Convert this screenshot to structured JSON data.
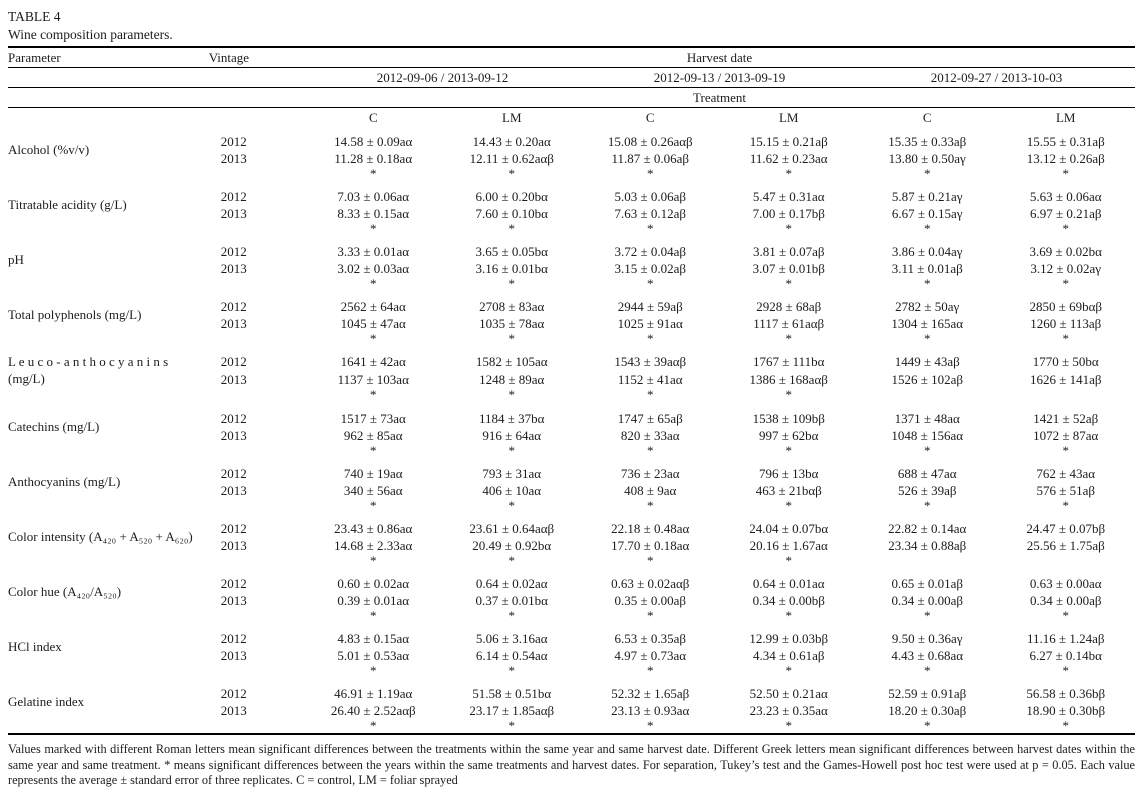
{
  "title": "TABLE 4",
  "subtitle": "Wine composition parameters.",
  "header": {
    "parameter": "Parameter",
    "vintage": "Vintage",
    "harvest_date": "Harvest date",
    "harvest_groups": [
      "2012-09-06 / 2013-09-12",
      "2012-09-13 / 2013-09-19",
      "2012-09-27 / 2013-10-03"
    ],
    "treatment": "Treatment",
    "treatment_cols": [
      "C",
      "LM",
      "C",
      "LM",
      "C",
      "LM"
    ]
  },
  "parameters": [
    {
      "label": "Alcohol (%v/v)",
      "vintages": [
        {
          "year": "2012",
          "values": [
            "14.58 ± 0.09aα",
            "14.43 ± 0.20aα",
            "15.08 ± 0.26aαβ",
            "15.15 ± 0.21aβ",
            "15.35 ± 0.33aβ",
            "15.55 ± 0.31aβ"
          ]
        },
        {
          "year": "2013",
          "values": [
            "11.28 ± 0.18aα",
            "12.11 ± 0.62aαβ",
            "11.87 ± 0.06aβ",
            "11.62 ± 0.23aα",
            "13.80 ± 0.50aγ",
            "13.12 ± 0.26aβ"
          ]
        }
      ],
      "sig": [
        "*",
        "*",
        "*",
        "*",
        "*",
        "*"
      ]
    },
    {
      "label": "Titratable acidity (g/L)",
      "vintages": [
        {
          "year": "2012",
          "values": [
            "7.03 ± 0.06aα",
            "6.00 ± 0.20bα",
            "5.03 ± 0.06aβ",
            "5.47 ± 0.31aα",
            "5.87 ± 0.21aγ",
            "5.63 ± 0.06aα"
          ]
        },
        {
          "year": "2013",
          "values": [
            "8.33 ± 0.15aα",
            "7.60 ± 0.10bα",
            "7.63 ± 0.12aβ",
            "7.00 ± 0.17bβ",
            "6.67 ± 0.15aγ",
            "6.97 ± 0.21aβ"
          ]
        }
      ],
      "sig": [
        "*",
        "*",
        "*",
        "*",
        "*",
        "*"
      ]
    },
    {
      "label": "pH",
      "vintages": [
        {
          "year": "2012",
          "values": [
            "3.33 ± 0.01aα",
            "3.65 ± 0.05bα",
            "3.72 ± 0.04aβ",
            "3.81 ± 0.07aβ",
            "3.86 ± 0.04aγ",
            "3.69 ± 0.02bα"
          ]
        },
        {
          "year": "2013",
          "values": [
            "3.02 ± 0.03aα",
            "3.16 ± 0.01bα",
            "3.15 ± 0.02aβ",
            "3.07 ± 0.01bβ",
            "3.11 ± 0.01aβ",
            "3.12 ± 0.02aγ"
          ]
        }
      ],
      "sig": [
        "*",
        "*",
        "*",
        "*",
        "*",
        "*"
      ]
    },
    {
      "label": "Total polyphenols (mg/L)",
      "vintages": [
        {
          "year": "2012",
          "values": [
            "2562 ± 64aα",
            "2708 ± 83aα",
            "2944 ± 59aβ",
            "2928 ± 68aβ",
            "2782 ± 50aγ",
            "2850 ± 69bαβ"
          ]
        },
        {
          "year": "2013",
          "values": [
            "1045 ± 47aα",
            "1035 ± 78aα",
            "1025 ± 91aα",
            "1117 ± 61aαβ",
            "1304 ± 165aα",
            "1260 ± 113aβ"
          ]
        }
      ],
      "sig": [
        "*",
        "*",
        "*",
        "*",
        "*",
        "*"
      ]
    },
    {
      "label": "L e u c o - a n t h o c y a n i n s\n(mg/L)",
      "vintages": [
        {
          "year": "2012",
          "values": [
            "1641 ± 42aα",
            "1582 ± 105aα",
            "1543 ± 39aαβ",
            "1767 ± 111bα",
            "1449 ± 43aβ",
            "1770 ± 50bα"
          ]
        },
        {
          "year": "2013",
          "values": [
            "1137 ± 103aα",
            "1248 ± 89aα",
            "1152 ± 41aα",
            "1386 ± 168aαβ",
            "1526 ± 102aβ",
            "1626 ± 141aβ"
          ]
        }
      ],
      "sig": [
        "*",
        "*",
        "*",
        "*",
        "",
        ""
      ]
    },
    {
      "label": "Catechins (mg/L)",
      "vintages": [
        {
          "year": "2012",
          "values": [
            "1517 ± 73aα",
            "1184 ± 37bα",
            "1747 ± 65aβ",
            "1538 ± 109bβ",
            "1371 ± 48aα",
            "1421 ± 52aβ"
          ]
        },
        {
          "year": "2013",
          "values": [
            "962 ± 85aα",
            "916 ± 64aα",
            "820 ± 33aα",
            "997 ± 62bα",
            "1048 ± 156aα",
            "1072 ± 87aα"
          ]
        }
      ],
      "sig": [
        "*",
        "*",
        "*",
        "*",
        "*",
        "*"
      ]
    },
    {
      "label": "Anthocyanins (mg/L)",
      "vintages": [
        {
          "year": "2012",
          "values": [
            "740 ± 19aα",
            "793 ± 31aα",
            "736 ± 23aα",
            "796 ± 13bα",
            "688 ± 47aα",
            "762 ± 43aα"
          ]
        },
        {
          "year": "2013",
          "values": [
            "340 ± 56aα",
            "406 ± 10aα",
            "408 ± 9aα",
            "463 ± 21bαβ",
            "526 ± 39aβ",
            "576 ± 51aβ"
          ]
        }
      ],
      "sig": [
        "*",
        "*",
        "*",
        "*",
        "*",
        "*"
      ]
    },
    {
      "label": "Color intensity (A₄₂₀ + A₅₂₀ + A₆₂₀)",
      "vintages": [
        {
          "year": "2012",
          "values": [
            "23.43 ± 0.86aα",
            "23.61 ± 0.64aαβ",
            "22.18 ± 0.48aα",
            "24.04 ± 0.07bα",
            "22.82 ± 0.14aα",
            "24.47 ± 0.07bβ"
          ]
        },
        {
          "year": "2013",
          "values": [
            "14.68 ± 2.33aα",
            "20.49 ± 0.92bα",
            "17.70 ± 0.18aα",
            "20.16 ± 1.67aα",
            "23.34 ± 0.88aβ",
            "25.56 ± 1.75aβ"
          ]
        }
      ],
      "sig": [
        "*",
        "*",
        "*",
        "*",
        "",
        ""
      ]
    },
    {
      "label": "Color hue (A₄₂₀/A₅₂₀)",
      "vintages": [
        {
          "year": "2012",
          "values": [
            "0.60 ± 0.02aα",
            "0.64 ± 0.02aα",
            "0.63 ± 0.02aαβ",
            "0.64 ± 0.01aα",
            "0.65 ± 0.01aβ",
            "0.63 ± 0.00aα"
          ]
        },
        {
          "year": "2013",
          "values": [
            "0.39 ± 0.01aα",
            "0.37 ± 0.01bα",
            "0.35 ± 0.00aβ",
            "0.34 ± 0.00bβ",
            "0.34 ± 0.00aβ",
            "0.34 ± 0.00aβ"
          ]
        }
      ],
      "sig": [
        "*",
        "*",
        "*",
        "*",
        "*",
        "*"
      ]
    },
    {
      "label": "HCl index",
      "vintages": [
        {
          "year": "2012",
          "values": [
            "4.83 ± 0.15aα",
            "5.06 ± 3.16aα",
            "6.53 ± 0.35aβ",
            "12.99 ± 0.03bβ",
            "9.50 ± 0.36aγ",
            "11.16 ± 1.24aβ"
          ]
        },
        {
          "year": "2013",
          "values": [
            "5.01 ± 0.53aα",
            "6.14 ± 0.54aα",
            "4.97 ± 0.73aα",
            "4.34 ± 0.61aβ",
            "4.43 ± 0.68aα",
            "6.27 ± 0.14bα"
          ]
        }
      ],
      "sig": [
        "*",
        "*",
        "*",
        "*",
        "*",
        "*"
      ]
    },
    {
      "label": "Gelatine index",
      "vintages": [
        {
          "year": "2012",
          "values": [
            "46.91 ± 1.19aα",
            "51.58 ± 0.51bα",
            "52.32 ± 1.65aβ",
            "52.50 ± 0.21aα",
            "52.59 ± 0.91aβ",
            "56.58 ± 0.36bβ"
          ]
        },
        {
          "year": "2013",
          "values": [
            "26.40 ± 2.52aαβ",
            "23.17 ± 1.85aαβ",
            "23.13 ± 0.93aα",
            "23.23 ± 0.35aα",
            "18.20 ± 0.30aβ",
            "18.90 ± 0.30bβ"
          ]
        }
      ],
      "sig": [
        "*",
        "*",
        "*",
        "*",
        "*",
        "*"
      ]
    }
  ],
  "footnote": "Values marked with different Roman letters mean significant differences between the treatments within the same year and same harvest date. Different Greek letters mean significant differences between harvest dates within the same year and same treatment. * means significant differences between the years within the same treatments and harvest dates. For separation, Tukey’s test and the Games-Howell post hoc test were used at p = 0.05. Each value represents the average ± standard error of three replicates. C = control, LM = foliar sprayed"
}
